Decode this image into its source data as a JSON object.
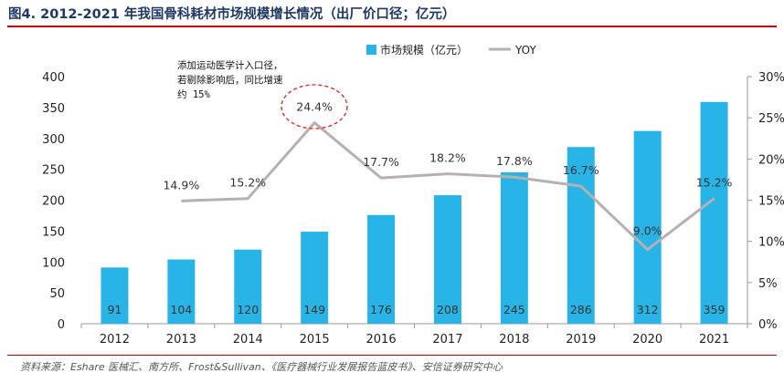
{
  "header": {
    "title": "图4. 2012-2021 年我国骨科耗材市场规模增长情况（出厂价口径；亿元）",
    "source": "资料来源：Eshare 医械汇、南方所、Frost&Sullivan、《医疗器械行业发展报告蓝皮书》、安信证券研究中心"
  },
  "annotation": {
    "lines": [
      "添加运动医学计入口径，",
      "若剔除影响后，同比增速",
      "约 15%"
    ],
    "highlight_label": "24.4%"
  },
  "colors": {
    "bar": "#28b4e6",
    "line": "#b8b0b0",
    "title": "#1f3864",
    "rule": "#c00000",
    "ellipse": "#e02020"
  },
  "chart_data": {
    "type": "bar+line",
    "categories": [
      "2012",
      "2013",
      "2014",
      "2015",
      "2016",
      "2017",
      "2018",
      "2019",
      "2020",
      "2021"
    ],
    "series": [
      {
        "name": "市场规模（亿元）",
        "type": "bar",
        "axis": "left",
        "values": [
          91,
          104,
          120,
          149,
          176,
          208,
          245,
          286,
          312,
          359
        ],
        "labels": [
          "91",
          "104",
          "120",
          "149",
          "176",
          "208",
          "245",
          "286",
          "312",
          "359"
        ]
      },
      {
        "name": "YOY",
        "type": "line",
        "axis": "right",
        "values": [
          null,
          14.9,
          15.2,
          24.4,
          17.7,
          18.2,
          17.8,
          16.7,
          9.0,
          15.2
        ],
        "labels": [
          "",
          "14.9%",
          "15.2%",
          "24.4%",
          "17.7%",
          "18.2%",
          "17.8%",
          "16.7%",
          "9.0%",
          "15.2%"
        ]
      }
    ],
    "y_left": {
      "min": 0,
      "max": 400,
      "ticks": [
        "0",
        "50",
        "100",
        "150",
        "200",
        "250",
        "300",
        "350",
        "400"
      ]
    },
    "y_right": {
      "min": 0,
      "max": 30,
      "ticks": [
        "0%",
        "5%",
        "10%",
        "15%",
        "20%",
        "25%",
        "30%"
      ]
    },
    "legend": {
      "position": "top-center",
      "entries": [
        "市场规模（亿元）",
        "YOY"
      ]
    },
    "grid": false
  }
}
